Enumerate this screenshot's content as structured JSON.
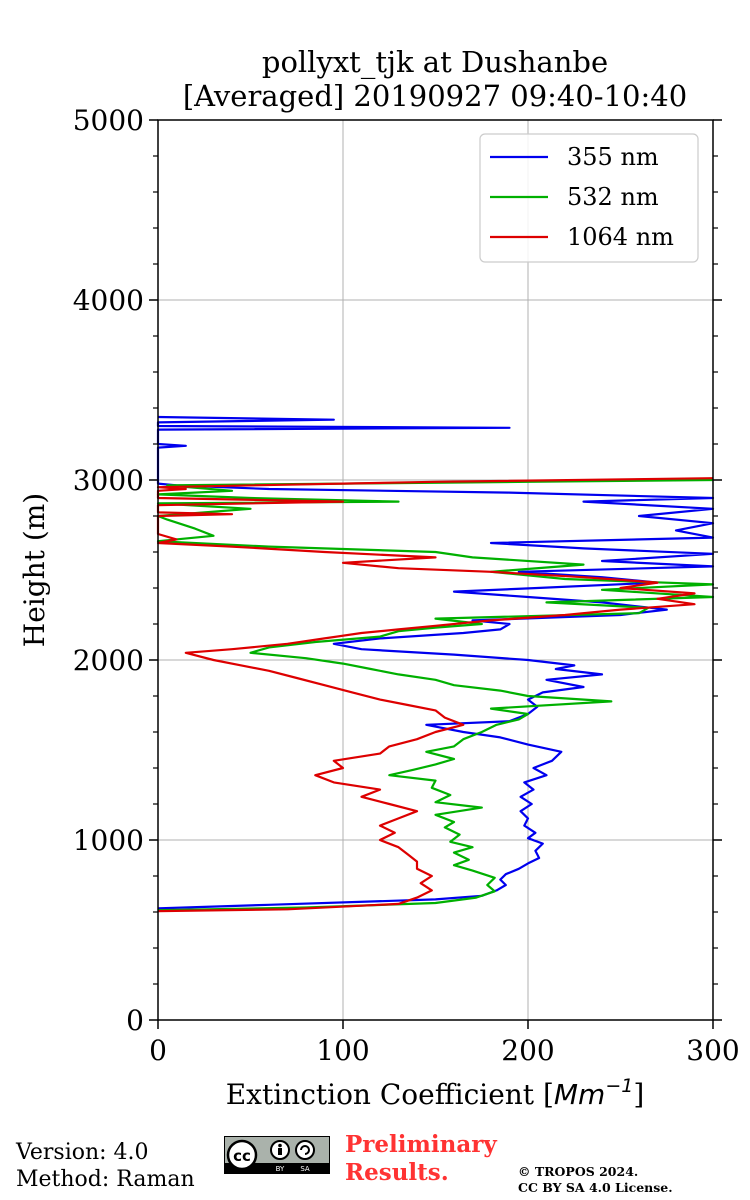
{
  "chart_data": {
    "type": "line",
    "title_line1": "pollyxt_tjk at Dushanbe",
    "title_line2": "[Averaged] 20190927 09:40-10:40",
    "xlabel": "Extinction Coefficient [",
    "xlabel_unit": "Mm",
    "xlabel_exp": "−1",
    "xlabel_close": "]",
    "ylabel": "Height (m)",
    "xlim": [
      0,
      300
    ],
    "ylim": [
      0,
      5000
    ],
    "xticks": [
      0,
      100,
      200,
      300
    ],
    "xtick_labels": [
      "0",
      "100",
      "200",
      "300"
    ],
    "yticks": [
      0,
      1000,
      2000,
      3000,
      4000,
      5000
    ],
    "ytick_labels": [
      "0",
      "1000",
      "2000",
      "3000",
      "4000",
      "5000"
    ],
    "grid": true,
    "legend_position": "top-right",
    "series": [
      {
        "name": "355 nm",
        "color": "#0000ee",
        "points": [
          [
            0,
            620
          ],
          [
            60,
            640
          ],
          [
            150,
            670
          ],
          [
            175,
            690
          ],
          [
            183,
            720
          ],
          [
            188,
            750
          ],
          [
            185,
            780
          ],
          [
            188,
            810
          ],
          [
            195,
            840
          ],
          [
            200,
            870
          ],
          [
            206,
            900
          ],
          [
            204,
            940
          ],
          [
            208,
            980
          ],
          [
            200,
            1010
          ],
          [
            204,
            1040
          ],
          [
            198,
            1080
          ],
          [
            200,
            1120
          ],
          [
            196,
            1160
          ],
          [
            202,
            1200
          ],
          [
            196,
            1240
          ],
          [
            203,
            1280
          ],
          [
            198,
            1320
          ],
          [
            210,
            1360
          ],
          [
            203,
            1400
          ],
          [
            213,
            1440
          ],
          [
            218,
            1490
          ],
          [
            200,
            1530
          ],
          [
            185,
            1570
          ],
          [
            165,
            1600
          ],
          [
            145,
            1640
          ],
          [
            190,
            1660
          ],
          [
            200,
            1700
          ],
          [
            205,
            1740
          ],
          [
            200,
            1780
          ],
          [
            208,
            1820
          ],
          [
            230,
            1850
          ],
          [
            210,
            1890
          ],
          [
            240,
            1920
          ],
          [
            215,
            1950
          ],
          [
            225,
            1970
          ],
          [
            200,
            2000
          ],
          [
            160,
            2030
          ],
          [
            110,
            2060
          ],
          [
            95,
            2090
          ],
          [
            120,
            2120
          ],
          [
            165,
            2150
          ],
          [
            185,
            2170
          ],
          [
            190,
            2200
          ],
          [
            170,
            2220
          ],
          [
            250,
            2250
          ],
          [
            275,
            2280
          ],
          [
            240,
            2320
          ],
          [
            200,
            2350
          ],
          [
            160,
            2380
          ],
          [
            205,
            2400
          ],
          [
            270,
            2430
          ],
          [
            240,
            2460
          ],
          [
            195,
            2490
          ],
          [
            300,
            2520
          ],
          [
            240,
            2550
          ],
          [
            300,
            2590
          ],
          [
            230,
            2620
          ],
          [
            180,
            2650
          ],
          [
            300,
            2680
          ],
          [
            280,
            2720
          ],
          [
            300,
            2760
          ],
          [
            260,
            2800
          ],
          [
            300,
            2840
          ],
          [
            230,
            2880
          ],
          [
            300,
            2900
          ],
          [
            190,
            2930
          ],
          [
            60,
            2950
          ],
          [
            10,
            2970
          ],
          [
            0,
            2980
          ],
          [
            0,
            3180
          ],
          [
            15,
            3190
          ],
          [
            0,
            3200
          ],
          [
            0,
            3280
          ],
          [
            190,
            3290
          ],
          [
            0,
            3300
          ],
          [
            0,
            3320
          ],
          [
            95,
            3335
          ],
          [
            0,
            3350
          ]
        ]
      },
      {
        "name": "532 nm",
        "color": "#00b000",
        "points": [
          [
            0,
            610
          ],
          [
            80,
            625
          ],
          [
            150,
            650
          ],
          [
            172,
            680
          ],
          [
            182,
            715
          ],
          [
            178,
            750
          ],
          [
            182,
            790
          ],
          [
            170,
            830
          ],
          [
            160,
            860
          ],
          [
            168,
            890
          ],
          [
            160,
            930
          ],
          [
            170,
            960
          ],
          [
            158,
            990
          ],
          [
            163,
            1030
          ],
          [
            155,
            1070
          ],
          [
            160,
            1100
          ],
          [
            150,
            1140
          ],
          [
            175,
            1180
          ],
          [
            150,
            1210
          ],
          [
            158,
            1250
          ],
          [
            148,
            1290
          ],
          [
            150,
            1330
          ],
          [
            125,
            1360
          ],
          [
            138,
            1390
          ],
          [
            150,
            1420
          ],
          [
            160,
            1450
          ],
          [
            145,
            1490
          ],
          [
            160,
            1520
          ],
          [
            165,
            1560
          ],
          [
            175,
            1600
          ],
          [
            183,
            1640
          ],
          [
            195,
            1670
          ],
          [
            200,
            1700
          ],
          [
            180,
            1730
          ],
          [
            245,
            1770
          ],
          [
            200,
            1800
          ],
          [
            185,
            1830
          ],
          [
            160,
            1860
          ],
          [
            150,
            1890
          ],
          [
            130,
            1920
          ],
          [
            115,
            1950
          ],
          [
            100,
            1980
          ],
          [
            80,
            2010
          ],
          [
            50,
            2040
          ],
          [
            60,
            2070
          ],
          [
            85,
            2100
          ],
          [
            120,
            2130
          ],
          [
            130,
            2160
          ],
          [
            150,
            2180
          ],
          [
            175,
            2200
          ],
          [
            150,
            2230
          ],
          [
            260,
            2260
          ],
          [
            265,
            2290
          ],
          [
            210,
            2320
          ],
          [
            300,
            2350
          ],
          [
            240,
            2390
          ],
          [
            300,
            2420
          ],
          [
            220,
            2450
          ],
          [
            180,
            2490
          ],
          [
            230,
            2530
          ],
          [
            170,
            2570
          ],
          [
            150,
            2600
          ],
          [
            60,
            2630
          ],
          [
            0,
            2660
          ],
          [
            30,
            2690
          ],
          [
            20,
            2730
          ],
          [
            5,
            2780
          ],
          [
            0,
            2800
          ],
          [
            50,
            2840
          ],
          [
            0,
            2870
          ],
          [
            130,
            2880
          ],
          [
            50,
            2900
          ],
          [
            0,
            2920
          ],
          [
            40,
            2940
          ],
          [
            5,
            2970
          ],
          [
            200,
            2990
          ],
          [
            300,
            3000
          ]
        ]
      },
      {
        "name": "1064 nm",
        "color": "#dd0000",
        "points": [
          [
            0,
            605
          ],
          [
            70,
            615
          ],
          [
            130,
            645
          ],
          [
            140,
            680
          ],
          [
            148,
            720
          ],
          [
            142,
            760
          ],
          [
            148,
            800
          ],
          [
            140,
            840
          ],
          [
            140,
            880
          ],
          [
            135,
            920
          ],
          [
            130,
            960
          ],
          [
            120,
            1000
          ],
          [
            128,
            1040
          ],
          [
            120,
            1080
          ],
          [
            130,
            1120
          ],
          [
            140,
            1160
          ],
          [
            125,
            1200
          ],
          [
            110,
            1240
          ],
          [
            120,
            1280
          ],
          [
            95,
            1320
          ],
          [
            85,
            1360
          ],
          [
            100,
            1400
          ],
          [
            95,
            1440
          ],
          [
            120,
            1480
          ],
          [
            125,
            1520
          ],
          [
            140,
            1560
          ],
          [
            150,
            1600
          ],
          [
            165,
            1640
          ],
          [
            155,
            1680
          ],
          [
            150,
            1720
          ],
          [
            135,
            1750
          ],
          [
            120,
            1780
          ],
          [
            105,
            1820
          ],
          [
            90,
            1860
          ],
          [
            75,
            1900
          ],
          [
            60,
            1940
          ],
          [
            45,
            1970
          ],
          [
            30,
            2000
          ],
          [
            15,
            2040
          ],
          [
            40,
            2060
          ],
          [
            70,
            2090
          ],
          [
            90,
            2120
          ],
          [
            110,
            2150
          ],
          [
            130,
            2170
          ],
          [
            150,
            2190
          ],
          [
            180,
            2220
          ],
          [
            220,
            2250
          ],
          [
            250,
            2280
          ],
          [
            290,
            2310
          ],
          [
            270,
            2340
          ],
          [
            290,
            2370
          ],
          [
            250,
            2400
          ],
          [
            270,
            2430
          ],
          [
            230,
            2460
          ],
          [
            180,
            2490
          ],
          [
            130,
            2510
          ],
          [
            100,
            2540
          ],
          [
            150,
            2570
          ],
          [
            90,
            2600
          ],
          [
            40,
            2630
          ],
          [
            0,
            2650
          ],
          [
            10,
            2670
          ],
          [
            0,
            2700
          ],
          [
            0,
            2800
          ],
          [
            40,
            2810
          ],
          [
            0,
            2820
          ],
          [
            0,
            2860
          ],
          [
            100,
            2880
          ],
          [
            0,
            2900
          ],
          [
            0,
            2940
          ],
          [
            15,
            2950
          ],
          [
            0,
            2960
          ],
          [
            150,
            2990
          ],
          [
            300,
            3010
          ]
        ]
      }
    ]
  },
  "footer": {
    "version": "Version: 4.0",
    "method": "Method: Raman",
    "preliminary_line1": "Preliminary",
    "preliminary_line2": "Results.",
    "copyright_line1": "© TROPOS 2024.",
    "copyright_line2": "CC BY SA 4.0 License.",
    "license_badge": {
      "cc_mark": "cc",
      "by_label": "BY",
      "sa_label": "SA"
    }
  }
}
